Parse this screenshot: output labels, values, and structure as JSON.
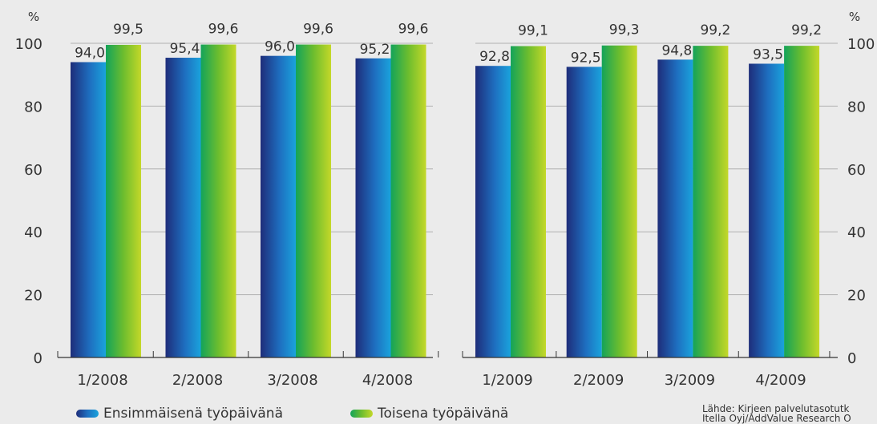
{
  "chart_data": {
    "type": "bar",
    "ylabel": "%",
    "ylim": [
      0,
      100
    ],
    "yticks": [
      0,
      20,
      40,
      60,
      80,
      100
    ],
    "grid": true,
    "colors": {
      "series1": [
        "#1e2d7a",
        "#1e6fc0",
        "#1aa3dc"
      ],
      "series2": [
        "#14a35a",
        "#6dbd2e",
        "#c4d829"
      ]
    },
    "series": [
      {
        "name": "Ensimmäisenä työpäivänä",
        "values": [
          94.0,
          95.4,
          96.0,
          95.2,
          92.8,
          92.5,
          94.8,
          93.5
        ]
      },
      {
        "name": "Toisena työpäivänä",
        "values": [
          99.5,
          99.6,
          99.6,
          99.6,
          99.1,
          99.3,
          99.2,
          99.2
        ]
      }
    ],
    "panels": [
      {
        "categories": [
          "1/2008",
          "2/2008",
          "3/2008",
          "4/2008"
        ],
        "value_labels": [
          [
            "94,0",
            "99,5"
          ],
          [
            "95,4",
            "99,6"
          ],
          [
            "96,0",
            "99,6"
          ],
          [
            "95,2",
            "99,6"
          ]
        ]
      },
      {
        "categories": [
          "1/2009",
          "2/2009",
          "3/2009",
          "4/2009"
        ],
        "value_labels": [
          [
            "92,8",
            "99,1"
          ],
          [
            "92,5",
            "99,3"
          ],
          [
            "94,8",
            "99,2"
          ],
          [
            "93,5",
            "99,2"
          ]
        ]
      }
    ]
  },
  "y_unit_label": "%",
  "legend": {
    "series1": "Ensimmäisenä työpäivänä",
    "series2": "Toisena työpäivänä"
  },
  "source": {
    "line1": "Lähde: Kirjeen palvelutasotutk",
    "line2": "Itella Oyj/AddValue Research O"
  }
}
